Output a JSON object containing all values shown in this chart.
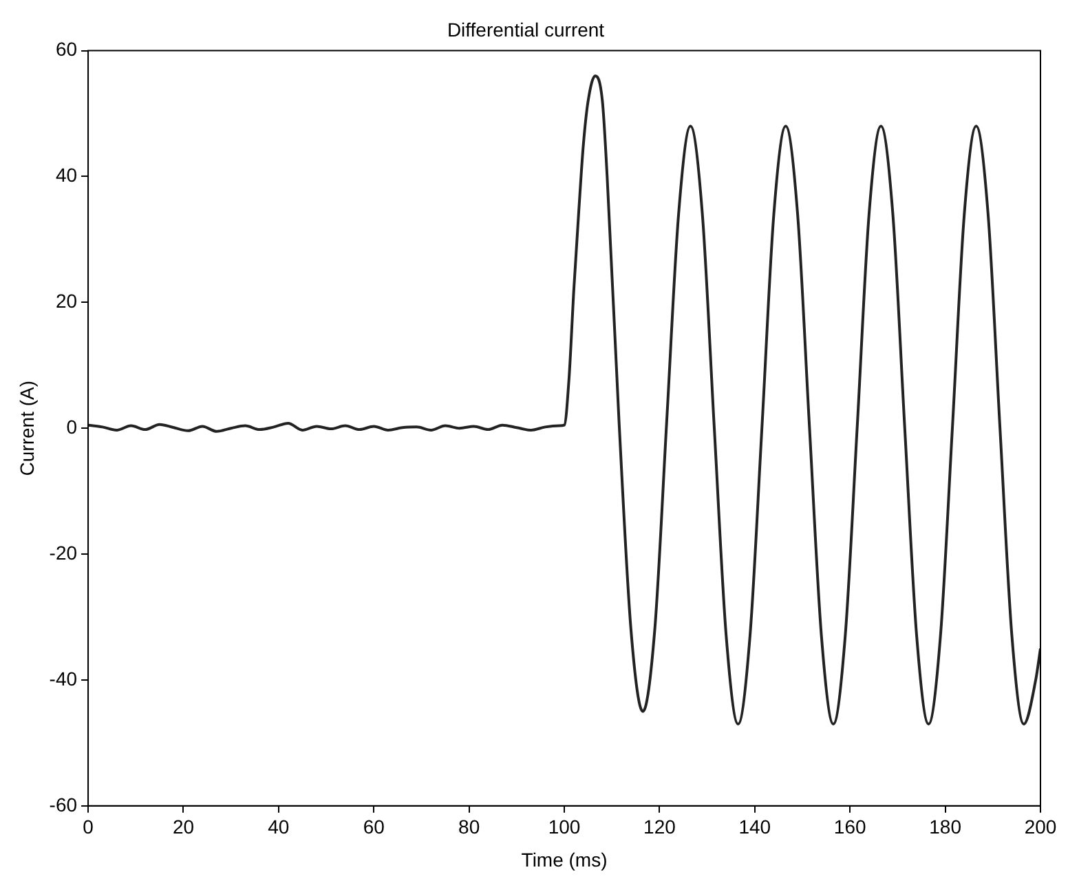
{
  "chart_data": {
    "type": "line",
    "title": "Differential current",
    "xlabel": "Time (ms)",
    "ylabel": "Current (A)",
    "x": [
      0,
      3,
      6,
      9,
      12,
      15,
      18,
      21,
      24,
      27,
      30,
      33,
      36,
      39,
      42,
      45,
      48,
      51,
      54,
      57,
      60,
      63,
      66,
      69,
      72,
      75,
      78,
      81,
      84,
      87,
      90,
      93,
      96,
      99,
      100,
      101,
      102,
      103,
      104,
      105,
      106.5,
      108,
      109,
      111.5,
      114,
      116.5,
      119,
      121.5,
      124,
      126.5,
      129,
      131.5,
      134,
      136.5,
      139,
      141.5,
      144,
      146.5,
      149,
      151.5,
      154,
      156.5,
      159,
      161.5,
      164,
      166.5,
      169,
      171.5,
      174,
      176.5,
      179,
      181.5,
      184,
      186.5,
      189,
      191.5,
      194,
      196.5,
      199,
      200
    ],
    "series": [
      {
        "color": "#222222",
        "values": [
          0.5,
          0.2,
          -0.3,
          0.4,
          -0.2,
          0.6,
          0.1,
          -0.4,
          0.3,
          -0.5,
          0,
          0.4,
          -0.2,
          0.2,
          0.8,
          -0.3,
          0.3,
          -0.1,
          0.4,
          -0.2,
          0.3,
          -0.3,
          0.1,
          0.2,
          -0.3,
          0.4,
          0,
          0.3,
          -0.2,
          0.5,
          0.1,
          -0.3,
          0.2,
          0.4,
          0.5,
          8,
          22,
          34,
          45,
          52,
          56,
          52,
          40,
          1,
          -32,
          -45,
          -32,
          1,
          34,
          48,
          34,
          0,
          -33,
          -47,
          -33,
          0,
          34,
          48,
          34,
          0,
          -33,
          -47,
          -33,
          0,
          34,
          48,
          34,
          0,
          -33,
          -47,
          -33,
          0,
          34,
          48,
          34,
          0,
          -33,
          -47,
          -40,
          -35
        ]
      }
    ],
    "xlim": [
      0,
      200
    ],
    "xticks": [
      0,
      20,
      40,
      60,
      80,
      100,
      120,
      140,
      160,
      180,
      200
    ],
    "ylim": [
      -60,
      60
    ],
    "yticks": [
      -60,
      -40,
      -20,
      0,
      20,
      40,
      60
    ],
    "grid": false,
    "legend": false,
    "marker": "none",
    "line_style": "solid"
  }
}
